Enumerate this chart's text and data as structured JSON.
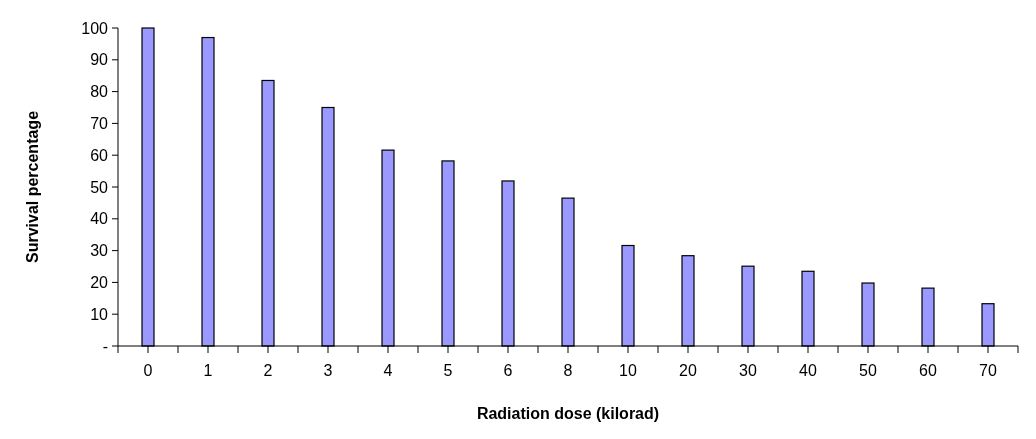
{
  "chart_data": {
    "type": "bar",
    "xlabel": "Radiation dose (kilorad)",
    "ylabel": "Survival percentage",
    "categories": [
      "0",
      "1",
      "2",
      "3",
      "4",
      "5",
      "6",
      "8",
      "10",
      "20",
      "30",
      "40",
      "50",
      "60",
      "70"
    ],
    "values": [
      100,
      97,
      83.5,
      75,
      61.6,
      58.2,
      51.9,
      46.5,
      31.6,
      28.4,
      25.1,
      23.5,
      19.8,
      18.2,
      13.3
    ],
    "color": "#9999ff",
    "ylim": [
      0,
      100
    ],
    "yticks": [
      {
        "value": 0,
        "label": "-"
      },
      10,
      20,
      30,
      40,
      50,
      60,
      70,
      80,
      90,
      100
    ],
    "grid": false
  }
}
